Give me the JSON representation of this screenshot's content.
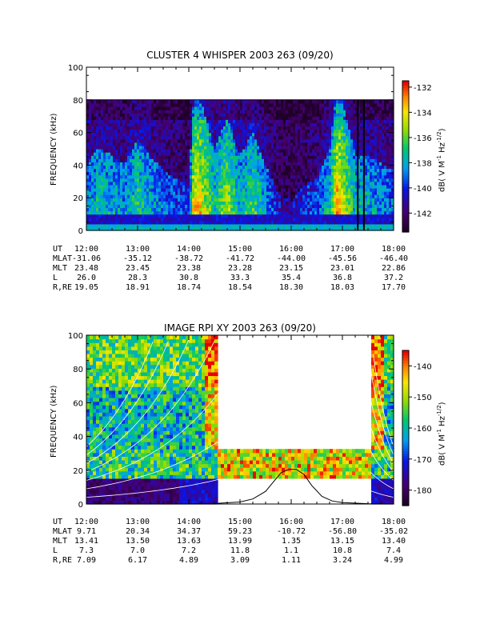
{
  "chart_data": [
    {
      "type": "heatmap",
      "title": "CLUSTER 4 WHISPER 2003 263 (09/20)",
      "ylabel": "FREQUENCY (kHz)",
      "ylim": [
        0,
        100
      ],
      "y_ticks": [
        0,
        20,
        40,
        60,
        80,
        100
      ],
      "data_top_khz": 80,
      "x_ticks": [
        "12:00",
        "13:00",
        "14:00",
        "15:00",
        "16:00",
        "17:00",
        "18:00"
      ],
      "colorbar": {
        "label_parts": [
          "dB( V M",
          "-1",
          " Hz",
          "-1/2",
          ")"
        ],
        "range": [
          -143.5,
          -131.5
        ],
        "ticks": [
          -132,
          -134,
          -136,
          -138,
          -140,
          -142
        ]
      },
      "intensity_profile": {
        "hours": [
          12.0,
          12.25,
          12.5,
          12.75,
          13.0,
          13.25,
          13.5,
          13.75,
          14.0,
          14.1,
          14.25,
          14.5,
          14.75,
          15.0,
          15.25,
          15.5,
          15.75,
          16.0,
          16.25,
          16.5,
          16.75,
          16.9,
          17.0,
          17.25,
          17.5,
          17.75,
          18.0
        ],
        "level": [
          0.45,
          0.55,
          0.5,
          0.45,
          0.6,
          0.5,
          0.4,
          0.35,
          0.3,
          0.9,
          0.85,
          0.55,
          0.75,
          0.5,
          0.65,
          0.45,
          0.25,
          0.2,
          0.3,
          0.35,
          0.55,
          0.95,
          0.85,
          0.5,
          0.5,
          0.45,
          0.4
        ]
      },
      "vertical_markers_hours": [
        17.3,
        17.42
      ],
      "ephemeris": {
        "labels": [
          "UT",
          "MLAT",
          "MLT",
          "L",
          "R,RE"
        ],
        "rows": [
          [
            "12:00",
            "13:00",
            "14:00",
            "15:00",
            "16:00",
            "17:00",
            "18:00"
          ],
          [
            "-31.06",
            "-35.12",
            "-38.72",
            "-41.72",
            "-44.00",
            "-45.56",
            "-46.40"
          ],
          [
            "23.48",
            "23.45",
            "23.38",
            "23.28",
            "23.15",
            "23.01",
            "22.86"
          ],
          [
            "26.0",
            "28.3",
            "30.8",
            "33.3",
            "35.4",
            "36.8",
            "37.2"
          ],
          [
            "19.05",
            "18.91",
            "18.74",
            "18.54",
            "18.30",
            "18.03",
            "17.70"
          ]
        ]
      }
    },
    {
      "type": "heatmap",
      "title": "IMAGE RPI XY 2003 263 (09/20)",
      "ylabel": "FREQUENCY (kHz)",
      "ylim": [
        0,
        100
      ],
      "y_ticks": [
        0,
        20,
        40,
        60,
        80,
        100
      ],
      "x_ticks": [
        "12:00",
        "13:00",
        "14:00",
        "15:00",
        "16:00",
        "17:00",
        "18:00"
      ],
      "colorbar": {
        "label_parts": [
          "dB( V M",
          "-1",
          " Hz",
          "-1/2",
          ")"
        ],
        "range": [
          -185,
          -135
        ],
        "ticks": [
          -140,
          -150,
          -160,
          -170,
          -180
        ]
      },
      "data_gap": {
        "start_hour": 14.58,
        "end_hour": 17.55,
        "band_khz": [
          16,
          32
        ]
      },
      "profile_curve": {
        "hours": [
          14.0,
          14.5,
          15.0,
          15.25,
          15.5,
          15.65,
          15.8,
          15.95,
          16.1,
          16.25,
          16.4,
          16.6,
          16.8,
          17.0,
          17.5,
          18.0
        ],
        "khz": [
          0,
          0.3,
          1.2,
          3.0,
          7.5,
          13,
          18.5,
          20.5,
          20.5,
          17.5,
          11,
          4.5,
          1.8,
          0.8,
          0.2,
          0
        ]
      },
      "ephemeris": {
        "labels": [
          "UT",
          "MLAT",
          "MLT",
          "L",
          "R,RE"
        ],
        "rows": [
          [
            "12:00",
            "13:00",
            "14:00",
            "15:00",
            "16:00",
            "17:00",
            "18:00"
          ],
          [
            "9.71",
            "20.34",
            "34.37",
            "59.23",
            "-10.72",
            "-56.80",
            "-35.02"
          ],
          [
            "13.41",
            "13.50",
            "13.63",
            "13.99",
            "1.35",
            "13.15",
            "13.40"
          ],
          [
            "7.3",
            "7.0",
            "7.2",
            "11.8",
            "1.1",
            "10.8",
            "7.4"
          ],
          [
            "7.09",
            "6.17",
            "4.89",
            "3.09",
            "1.11",
            "3.24",
            "4.99"
          ]
        ]
      }
    }
  ]
}
